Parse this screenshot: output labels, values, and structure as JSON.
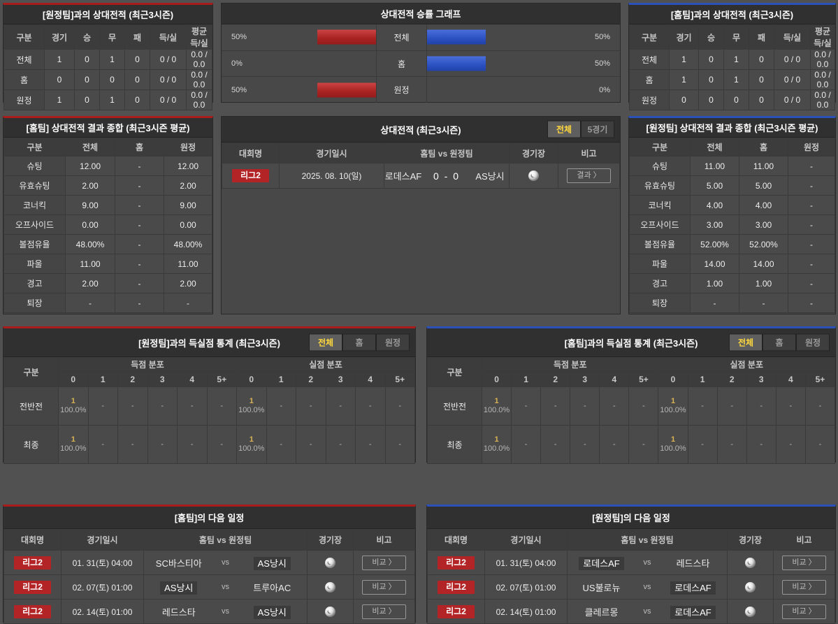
{
  "colors": {
    "accent_red": "#a81c1c",
    "accent_blue": "#2b50b8",
    "badge_red": "#b22426",
    "bar_red": "#a82222",
    "bar_blue": "#2b50c0",
    "tab_active_text": "#ffd83d"
  },
  "h2hAway": {
    "title": "[원정팀]과의 상대전적 (최근3시즌)",
    "headers": [
      "구분",
      "경기",
      "승",
      "무",
      "패",
      "득/실",
      "평균 득/실"
    ],
    "rows": [
      [
        "전체",
        "1",
        "0",
        "1",
        "0",
        "0 / 0",
        "0.0 / 0.0"
      ],
      [
        "홈",
        "0",
        "0",
        "0",
        "0",
        "0 / 0",
        "0.0 / 0.0"
      ],
      [
        "원정",
        "1",
        "0",
        "1",
        "0",
        "0 / 0",
        "0.0 / 0.0"
      ]
    ]
  },
  "graph": {
    "title": "상대전적 승률 그래프",
    "rows": [
      {
        "leftPct": "50%",
        "leftVal": 50,
        "label": "전체",
        "rightPct": "50%",
        "rightVal": 50
      },
      {
        "leftPct": "0%",
        "leftVal": 0,
        "label": "홈",
        "rightPct": "50%",
        "rightVal": 50
      },
      {
        "leftPct": "50%",
        "leftVal": 50,
        "label": "원정",
        "rightPct": "0%",
        "rightVal": 0
      }
    ]
  },
  "h2hHome": {
    "title": "[홈팀]과의 상대전적 (최근3시즌)",
    "headers": [
      "구분",
      "경기",
      "승",
      "무",
      "패",
      "득/실",
      "평균 득/실"
    ],
    "rows": [
      [
        "전체",
        "1",
        "0",
        "1",
        "0",
        "0 / 0",
        "0.0 / 0.0"
      ],
      [
        "홈",
        "1",
        "0",
        "1",
        "0",
        "0 / 0",
        "0.0 / 0.0"
      ],
      [
        "원정",
        "0",
        "0",
        "0",
        "0",
        "0 / 0",
        "0.0 / 0.0"
      ]
    ]
  },
  "summaryHome": {
    "title": "[홈팀] 상대전적 결과 종합 (최근3시즌 평균)",
    "headers": [
      "구분",
      "전체",
      "홈",
      "원정"
    ],
    "rows": [
      [
        "슈팅",
        "12.00",
        "-",
        "12.00"
      ],
      [
        "유효슈팅",
        "2.00",
        "-",
        "2.00"
      ],
      [
        "코너킥",
        "9.00",
        "-",
        "9.00"
      ],
      [
        "오프사이드",
        "0.00",
        "-",
        "0.00"
      ],
      [
        "볼점유율",
        "48.00%",
        "-",
        "48.00%"
      ],
      [
        "파울",
        "11.00",
        "-",
        "11.00"
      ],
      [
        "경고",
        "2.00",
        "-",
        "2.00"
      ],
      [
        "퇴장",
        "-",
        "-",
        "-"
      ]
    ]
  },
  "matches": {
    "title": "상대전적 (최근3시즌)",
    "tabs": [
      "전체",
      "5경기"
    ],
    "activeTab": "전체",
    "headers": [
      "대회명",
      "경기일시",
      "홈팀  vs  원정팀",
      "경기장",
      "비고"
    ],
    "row": {
      "league": "리그2",
      "date": "2025. 08. 10(일)",
      "home": "로데스AF",
      "score": "0 - 0",
      "away": "AS낭시",
      "action": "결과 〉"
    }
  },
  "summaryAway": {
    "title": "[원정팀] 상대전적 결과 종합 (최근3시즌 평균)",
    "headers": [
      "구분",
      "전체",
      "홈",
      "원정"
    ],
    "rows": [
      [
        "슈팅",
        "11.00",
        "11.00",
        "-"
      ],
      [
        "유효슈팅",
        "5.00",
        "5.00",
        "-"
      ],
      [
        "코너킥",
        "4.00",
        "4.00",
        "-"
      ],
      [
        "오프사이드",
        "3.00",
        "3.00",
        "-"
      ],
      [
        "볼점유율",
        "52.00%",
        "52.00%",
        "-"
      ],
      [
        "파울",
        "14.00",
        "14.00",
        "-"
      ],
      [
        "경고",
        "1.00",
        "1.00",
        "-"
      ],
      [
        "퇴장",
        "-",
        "-",
        "-"
      ]
    ]
  },
  "goalsLeft": {
    "title": "[원정팀]과의 득실점 통계 (최근3시즌)",
    "tabs": [
      "전체",
      "홈",
      "원정"
    ],
    "activeTab": "전체",
    "corner": "구분",
    "groups": [
      "득점 분포",
      "실점 분포"
    ],
    "bins": [
      "0",
      "1",
      "2",
      "3",
      "4",
      "5+"
    ],
    "rows": [
      {
        "label": "전반전",
        "cells": [
          {
            "n": "1",
            "p": "100.0%"
          },
          {
            "n": "",
            "p": "-"
          },
          {
            "n": "",
            "p": "-"
          },
          {
            "n": "",
            "p": "-"
          },
          {
            "n": "",
            "p": "-"
          },
          {
            "n": "",
            "p": "-"
          },
          {
            "n": "1",
            "p": "100.0%"
          },
          {
            "n": "",
            "p": "-"
          },
          {
            "n": "",
            "p": "-"
          },
          {
            "n": "",
            "p": "-"
          },
          {
            "n": "",
            "p": "-"
          },
          {
            "n": "",
            "p": "-"
          }
        ]
      },
      {
        "label": "최종",
        "cells": [
          {
            "n": "1",
            "p": "100.0%"
          },
          {
            "n": "",
            "p": "-"
          },
          {
            "n": "",
            "p": "-"
          },
          {
            "n": "",
            "p": "-"
          },
          {
            "n": "",
            "p": "-"
          },
          {
            "n": "",
            "p": "-"
          },
          {
            "n": "1",
            "p": "100.0%"
          },
          {
            "n": "",
            "p": "-"
          },
          {
            "n": "",
            "p": "-"
          },
          {
            "n": "",
            "p": "-"
          },
          {
            "n": "",
            "p": "-"
          },
          {
            "n": "",
            "p": "-"
          }
        ]
      }
    ]
  },
  "goalsRight": {
    "title": "[홈팀]과의 득실점 통계 (최근3시즌)",
    "tabs": [
      "전체",
      "홈",
      "원정"
    ],
    "activeTab": "전체",
    "corner": "구분",
    "groups": [
      "득점 분포",
      "실점 분포"
    ],
    "bins": [
      "0",
      "1",
      "2",
      "3",
      "4",
      "5+"
    ],
    "rows": [
      {
        "label": "전반전",
        "cells": [
          {
            "n": "1",
            "p": "100.0%"
          },
          {
            "n": "",
            "p": "-"
          },
          {
            "n": "",
            "p": "-"
          },
          {
            "n": "",
            "p": "-"
          },
          {
            "n": "",
            "p": "-"
          },
          {
            "n": "",
            "p": "-"
          },
          {
            "n": "1",
            "p": "100.0%"
          },
          {
            "n": "",
            "p": "-"
          },
          {
            "n": "",
            "p": "-"
          },
          {
            "n": "",
            "p": "-"
          },
          {
            "n": "",
            "p": "-"
          },
          {
            "n": "",
            "p": "-"
          }
        ]
      },
      {
        "label": "최종",
        "cells": [
          {
            "n": "1",
            "p": "100.0%"
          },
          {
            "n": "",
            "p": "-"
          },
          {
            "n": "",
            "p": "-"
          },
          {
            "n": "",
            "p": "-"
          },
          {
            "n": "",
            "p": "-"
          },
          {
            "n": "",
            "p": "-"
          },
          {
            "n": "1",
            "p": "100.0%"
          },
          {
            "n": "",
            "p": "-"
          },
          {
            "n": "",
            "p": "-"
          },
          {
            "n": "",
            "p": "-"
          },
          {
            "n": "",
            "p": "-"
          },
          {
            "n": "",
            "p": "-"
          }
        ]
      }
    ]
  },
  "schedHome": {
    "title": "[홈팀]의 다음 일정",
    "headers": [
      "대회명",
      "경기일시",
      "홈팀  vs  원정팀",
      "경기장",
      "비고"
    ],
    "vs": "vs",
    "action": "비교 〉",
    "rows": [
      {
        "league": "리그2",
        "date": "01. 31(토) 04:00",
        "home": "SC바스티아",
        "away": "AS낭시",
        "highlight": "away"
      },
      {
        "league": "리그2",
        "date": "02. 07(토) 01:00",
        "home": "AS낭시",
        "away": "트루아AC",
        "highlight": "home"
      },
      {
        "league": "리그2",
        "date": "02. 14(토) 01:00",
        "home": "레드스타",
        "away": "AS낭시",
        "highlight": "away"
      }
    ]
  },
  "schedAway": {
    "title": "[원정팀]의 다음 일정",
    "headers": [
      "대회명",
      "경기일시",
      "홈팀  vs  원정팀",
      "경기장",
      "비고"
    ],
    "vs": "vs",
    "action": "비교 〉",
    "rows": [
      {
        "league": "리그2",
        "date": "01. 31(토) 04:00",
        "home": "로데스AF",
        "away": "레드스타",
        "highlight": "home"
      },
      {
        "league": "리그2",
        "date": "02. 07(토) 01:00",
        "home": "US불로뉴",
        "away": "로데스AF",
        "highlight": "away"
      },
      {
        "league": "리그2",
        "date": "02. 14(토) 01:00",
        "home": "클레르몽",
        "away": "로데스AF",
        "highlight": "away"
      }
    ]
  }
}
